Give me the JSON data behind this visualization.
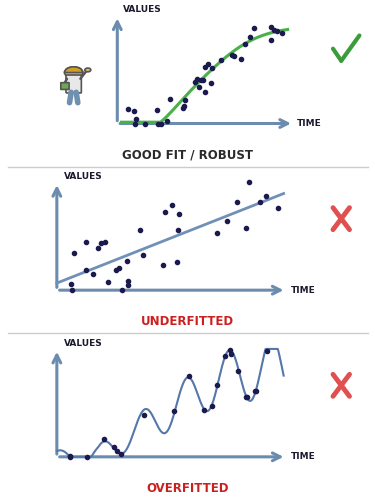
{
  "bg_color": "#ffffff",
  "panel_titles": [
    "GOOD FIT / ROBUST",
    "UNDERFITTED",
    "OVERFITTED"
  ],
  "title_colors": [
    "#2a2a2a",
    "#cc2020",
    "#cc2020"
  ],
  "axis_color": "#6b8cae",
  "axis_label_color": "#1a1a2e",
  "check_color": "#3a9c3a",
  "cross_color": "#e05050",
  "divider_color": "#cccccc",
  "good_fit_curve_color": "#4ab04a",
  "good_fit_dot_color": "#1a1a4e",
  "underfit_line_color": "#7090b8",
  "underfit_dot_color": "#1a1a4e",
  "overfit_curve_color": "#5577aa",
  "overfit_dot_color": "#1a1a4e",
  "person_color": "#e8c070",
  "person_body_color": "#f0f0f0"
}
